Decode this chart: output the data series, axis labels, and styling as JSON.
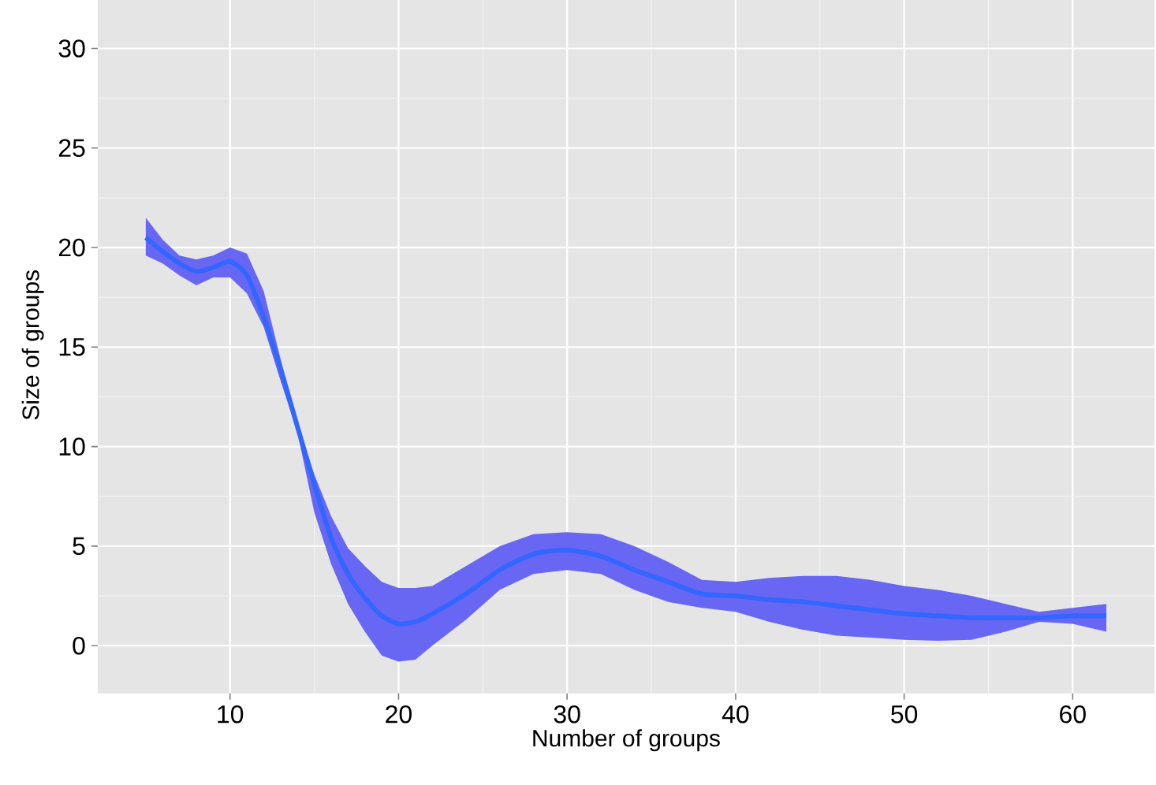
{
  "chart_data": {
    "type": "line",
    "xlabel": "Number of groups",
    "ylabel": "Size of groups",
    "x": [
      5,
      6,
      7,
      8,
      9,
      10,
      11,
      12,
      13,
      14,
      15,
      16,
      17,
      18,
      19,
      20,
      21,
      22,
      24,
      26,
      28,
      30,
      32,
      34,
      36,
      38,
      40,
      42,
      44,
      46,
      48,
      50,
      52,
      54,
      56,
      58,
      60,
      62
    ],
    "series": [
      {
        "color": "#3366ff",
        "values": [
          20.5,
          19.8,
          19.2,
          18.8,
          19.0,
          19.3,
          18.6,
          16.5,
          13.9,
          11.0,
          8.1,
          5.4,
          3.6,
          2.4,
          1.5,
          1.1,
          1.2,
          1.6,
          2.6,
          3.8,
          4.6,
          4.8,
          4.5,
          3.8,
          3.2,
          2.6,
          2.5,
          2.3,
          2.2,
          2.0,
          1.8,
          1.6,
          1.5,
          1.4,
          1.4,
          1.4,
          1.5,
          1.5
        ],
        "upper": [
          21.5,
          20.4,
          19.6,
          19.4,
          19.6,
          20.0,
          19.7,
          17.8,
          14.4,
          11.2,
          8.6,
          6.5,
          4.9,
          4.0,
          3.2,
          2.9,
          2.9,
          3.0,
          4.0,
          5.0,
          5.6,
          5.7,
          5.6,
          5.0,
          4.2,
          3.3,
          3.2,
          3.4,
          3.5,
          3.5,
          3.3,
          3.0,
          2.8,
          2.5,
          2.1,
          1.7,
          1.9,
          2.1
        ],
        "lower": [
          19.6,
          19.2,
          18.6,
          18.1,
          18.5,
          18.5,
          17.7,
          16.0,
          13.3,
          10.7,
          6.7,
          4.1,
          2.1,
          0.7,
          -0.5,
          -0.8,
          -0.7,
          0.0,
          1.3,
          2.8,
          3.6,
          3.8,
          3.6,
          2.8,
          2.2,
          1.9,
          1.7,
          1.2,
          0.8,
          0.5,
          0.4,
          0.3,
          0.25,
          0.3,
          0.7,
          1.2,
          1.1,
          0.7
        ]
      }
    ],
    "xlim": [
      2.15,
      64.85
    ],
    "ylim": [
      -2.4,
      32.6
    ],
    "xticks": [
      10,
      20,
      30,
      40,
      50,
      60
    ],
    "yticks": [
      0,
      5,
      10,
      15,
      20,
      25,
      30
    ],
    "grid": true,
    "marker": "none",
    "line_style": "solid"
  }
}
